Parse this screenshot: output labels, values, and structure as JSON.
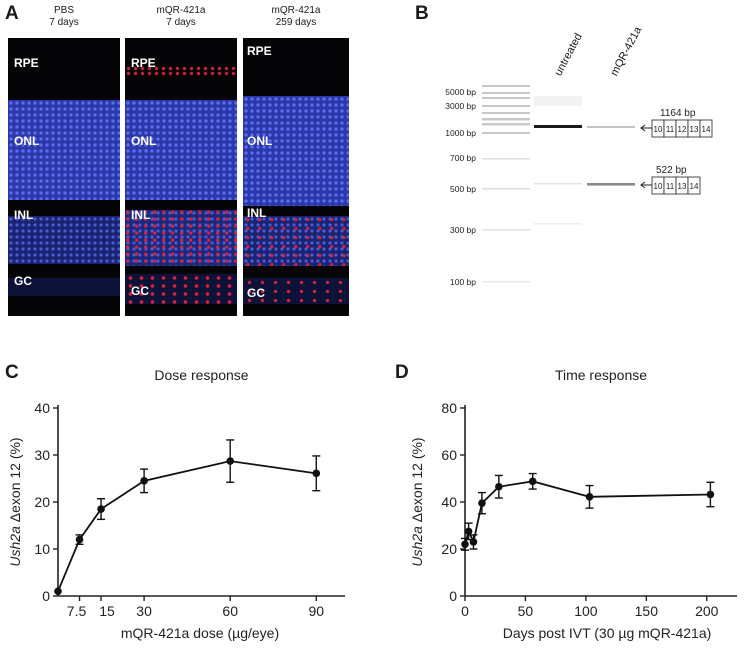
{
  "panel_a": {
    "letter": "A",
    "images": [
      {
        "caption": [
          "PBS",
          "7 days"
        ],
        "labels": [
          "RPE",
          "ONL",
          "INL",
          "GC"
        ]
      },
      {
        "caption": [
          "mQR-421a",
          "7 days"
        ],
        "labels": [
          "RPE",
          "ONL",
          "INL",
          "GC"
        ]
      },
      {
        "caption": [
          "mQR-421a",
          "259 days"
        ],
        "labels": [
          "RPE",
          "ONL",
          "INL",
          "GC"
        ]
      }
    ],
    "colors": {
      "nuclei": "#3a4fd8",
      "signal": "#e0203a",
      "background": "#050508"
    }
  },
  "panel_b": {
    "letter": "B",
    "lanes": [
      "untreated",
      "mQR-421a"
    ],
    "ladder": [
      "5000 bp",
      "3000 bp",
      "2000 bp",
      "1000 bp",
      "700 bp",
      "500 bp",
      "300 bp",
      "100 bp"
    ],
    "ladder_visible": [
      "5000 bp",
      "3000 bp",
      "1000 bp",
      "700 bp",
      "500 bp",
      "300 bp",
      "100 bp"
    ],
    "band_upper": {
      "size": "1164 bp",
      "exons": [
        "10",
        "11",
        "12",
        "13",
        "14"
      ]
    },
    "band_lower": {
      "size": "522 bp",
      "exons": [
        "10",
        "11",
        "13",
        "14"
      ]
    }
  },
  "chart_data": [
    {
      "type": "line",
      "panel": "C",
      "title": "Dose response",
      "xlabel": "mQR-421a dose (µg/eye)",
      "ylabel_italic": "Ush2a",
      "ylabel_rest": " Δexon 12 (%)",
      "x_ticks": [
        "7.5",
        "15",
        "30",
        "60",
        "90"
      ],
      "x_tick_values": [
        7.5,
        15,
        30,
        60,
        90
      ],
      "y_ticks": [
        "0",
        "10",
        "20",
        "30",
        "40"
      ],
      "xlim": [
        0,
        100
      ],
      "ylim": [
        0,
        40
      ],
      "x": [
        0,
        7.5,
        15,
        30,
        60,
        90
      ],
      "y": [
        1,
        12,
        18.5,
        24.5,
        28.7,
        26.1
      ],
      "err": [
        0,
        1,
        2.2,
        2.5,
        4.5,
        3.7
      ]
    },
    {
      "type": "line",
      "panel": "D",
      "title": "Time response",
      "xlabel": "Days post  IVT (30 µg mQR-421a)",
      "ylabel_italic": "Ush2a",
      "ylabel_rest": " Δexon 12 (%)",
      "x_ticks": [
        "0",
        "50",
        "100",
        "150",
        "200"
      ],
      "x_tick_values": [
        0,
        50,
        100,
        150,
        200
      ],
      "y_ticks": [
        "0",
        "20",
        "40",
        "60",
        "80"
      ],
      "xlim": [
        0,
        225
      ],
      "ylim": [
        0,
        80
      ],
      "x": [
        0,
        3,
        7,
        14,
        28,
        56,
        103,
        203
      ],
      "y": [
        22,
        27.5,
        23,
        39.5,
        46.5,
        48.8,
        42.2,
        43.2
      ],
      "err": [
        2.5,
        3.5,
        3,
        4.5,
        4.8,
        3.3,
        4.8,
        5.2
      ]
    }
  ]
}
